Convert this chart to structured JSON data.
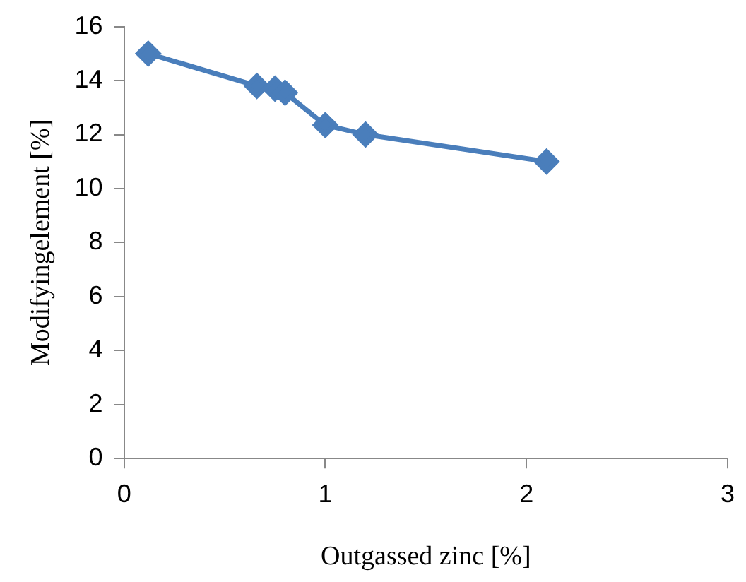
{
  "chart_data": {
    "type": "line",
    "xlabel": "Outgassed zinc [%]",
    "ylabel": "Modifyingelement [%]",
    "x": [
      0.12,
      0.66,
      0.75,
      0.8,
      1.0,
      1.2,
      2.1
    ],
    "series": [
      {
        "color": "#4a7ebb",
        "values": [
          15.0,
          13.8,
          13.7,
          13.55,
          12.35,
          12.0,
          11.0
        ]
      }
    ],
    "xlim": [
      0,
      3
    ],
    "xticks": [
      0,
      1,
      2,
      3
    ],
    "ylim": [
      0,
      16
    ],
    "yticks": [
      0,
      2,
      4,
      6,
      8,
      10,
      12,
      14,
      16
    ],
    "grid": false,
    "legend": false,
    "marker": "diamond",
    "line_style": "solid"
  }
}
